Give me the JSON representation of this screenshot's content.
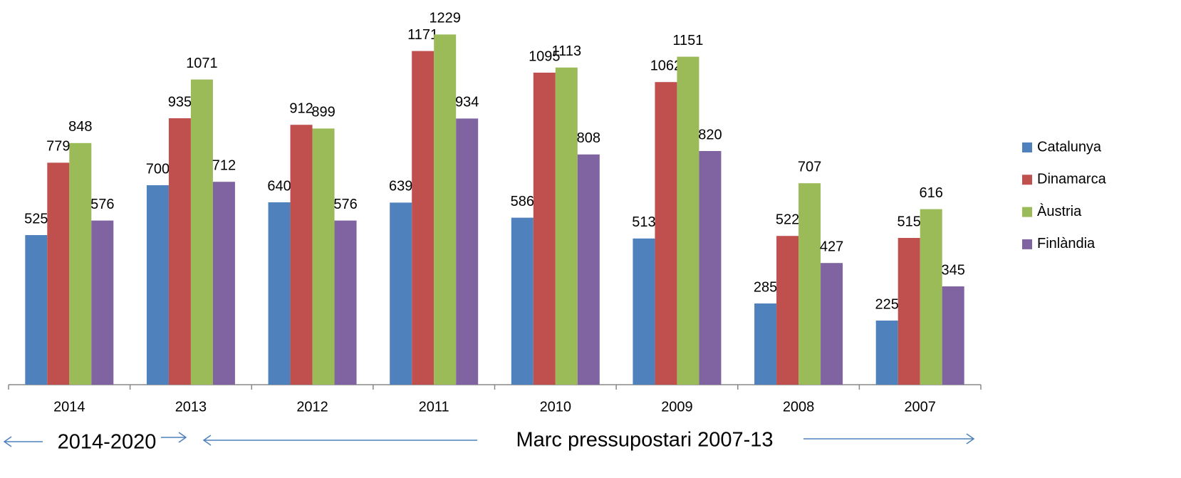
{
  "chart_data": {
    "type": "bar",
    "categories": [
      "2014",
      "2013",
      "2012",
      "2011",
      "2010",
      "2009",
      "2008",
      "2007"
    ],
    "series": [
      {
        "name": "Catalunya",
        "color": "#4f81bd",
        "values": [
          525,
          700,
          640,
          639,
          586,
          513,
          285,
          225
        ]
      },
      {
        "name": "Dinamarca",
        "color": "#c0504d",
        "values": [
          779,
          935,
          912,
          1171,
          1095,
          1062,
          522,
          515
        ]
      },
      {
        "name": "Àustria",
        "color": "#9bbb59",
        "values": [
          848,
          1071,
          899,
          1229,
          1113,
          1151,
          707,
          616
        ]
      },
      {
        "name": "Finlàndia",
        "color": "#8064a2",
        "values": [
          576,
          712,
          576,
          934,
          808,
          820,
          427,
          345
        ]
      }
    ],
    "ylim": [
      0,
      1350
    ],
    "legend": "right",
    "annotations": [
      "2014-2020",
      "Marc pressupostari 2007-13"
    ]
  }
}
